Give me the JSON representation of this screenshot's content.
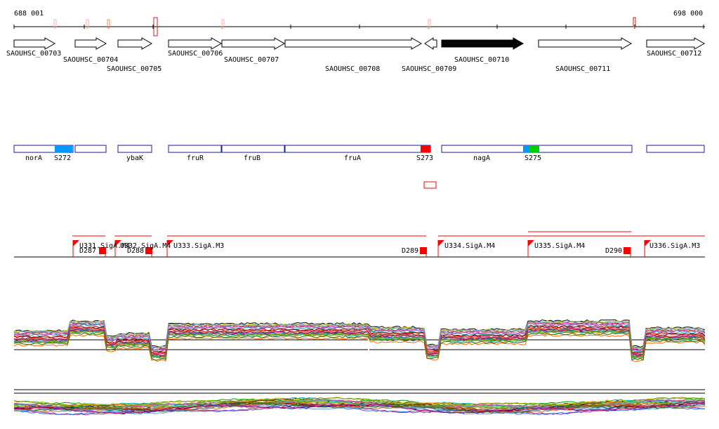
{
  "coords": {
    "start": "688 001",
    "end": "698 000",
    "range": [
      688001,
      698000
    ]
  },
  "colors": {
    "feature": "#1a1aa8",
    "red": "#ff0000",
    "blue": "#0099ff",
    "green": "#00cc00",
    "tick": "#ff8844"
  },
  "genes": [
    {
      "label": "SAOUHSC_00703",
      "dir": "right",
      "filled": false
    },
    {
      "label": "SAOUHSC_00704",
      "dir": "right",
      "filled": false
    },
    {
      "label": "SAOUHSC_00705",
      "dir": "right",
      "filled": false
    },
    {
      "label": "SAOUHSC_00706",
      "dir": "right",
      "filled": false
    },
    {
      "label": "SAOUHSC_00707",
      "dir": "right",
      "filled": false
    },
    {
      "label": "SAOUHSC_00708",
      "dir": "right",
      "filled": false
    },
    {
      "label": "SAOUHSC_00709",
      "dir": "left",
      "filled": false
    },
    {
      "label": "SAOUHSC_00710",
      "dir": "right",
      "filled": true
    },
    {
      "label": "SAOUHSC_00711",
      "dir": "right",
      "filled": false
    },
    {
      "label": "SAOUHSC_00712",
      "dir": "right",
      "filled": false
    }
  ],
  "features": {
    "names": [
      "norA",
      "ybaK",
      "fruR",
      "fruB",
      "fruA",
      "nagA"
    ],
    "sites": [
      {
        "label": "S272",
        "color": "blue"
      },
      {
        "label": "S273",
        "color": "red"
      },
      {
        "label": "S275",
        "color": "blue-green"
      }
    ]
  },
  "units": [
    {
      "label": "U331.SigA.M4"
    },
    {
      "label": "U332.SigA.M4"
    },
    {
      "label": "U333.SigA.M3"
    },
    {
      "label": "U334.SigA.M4"
    },
    {
      "label": "U335.SigA.M4"
    },
    {
      "label": "U336.SigA.M3"
    }
  ],
  "downs": [
    {
      "label": "D287"
    },
    {
      "label": "D288"
    },
    {
      "label": "D289"
    },
    {
      "label": "D290"
    }
  ],
  "expression": {
    "series_count": 24,
    "palette": [
      "#000000",
      "#cc0000",
      "#009900",
      "#0000cc",
      "#cc9900",
      "#993399",
      "#00aaaa",
      "#ff6600",
      "#663300",
      "#999999",
      "#66cc00",
      "#ff3399",
      "#3366ff",
      "#cccc00",
      "#990000",
      "#006666",
      "#ff9999",
      "#9966cc",
      "#33cc99",
      "#cc6633",
      "#336600",
      "#6699cc",
      "#aa0066",
      "#888800"
    ]
  }
}
